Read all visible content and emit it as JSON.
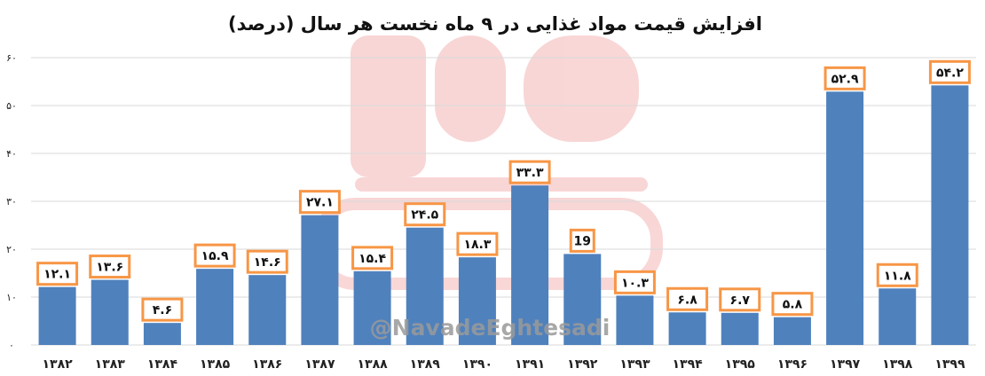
{
  "chart_data": {
    "type": "bar",
    "title": "افزایش قیمت مواد غذایی در ۹ ماه نخست هر سال (درصد)",
    "categories": [
      "۱۳۸۲",
      "۱۳۸۳",
      "۱۳۸۴",
      "۱۳۸۵",
      "۱۳۸۶",
      "۱۳۸۷",
      "۱۳۸۸",
      "۱۳۸۹",
      "۱۳۹۰",
      "۱۳۹۱",
      "۱۳۹۲",
      "۱۳۹۳",
      "۱۳۹۴",
      "۱۳۹۵",
      "۱۳۹۶",
      "۱۳۹۷",
      "۱۳۹۸",
      "۱۳۹۹"
    ],
    "values": [
      12.1,
      13.6,
      4.6,
      15.9,
      14.6,
      27.1,
      15.4,
      24.5,
      18.3,
      33.3,
      19,
      10.3,
      6.8,
      6.7,
      5.8,
      52.9,
      11.8,
      54.2
    ],
    "data_labels": [
      "۱۲.۱",
      "۱۳.۶",
      "۴.۶",
      "۱۵.۹",
      "۱۴.۶",
      "۲۷.۱",
      "۱۵.۴",
      "۲۴.۵",
      "۱۸.۳",
      "۳۳.۳",
      "19",
      "۱۰.۳",
      "۶.۸",
      "۶.۷",
      "۵.۸",
      "۵۲.۹",
      "۱۱.۸",
      "۵۴.۲"
    ],
    "ylim": [
      0,
      60
    ],
    "y_ticks": [
      0,
      10,
      20,
      30,
      40,
      50,
      60
    ],
    "y_tick_labels": [
      "۰",
      "۱۰",
      "۲۰",
      "۳۰",
      "۴۰",
      "۵۰",
      "۶۰"
    ],
    "grid": true,
    "xlabel": "",
    "ylabel": "",
    "colors": {
      "bar": "#4f81bd",
      "label_border": "#f79646",
      "grid": "#d9d9d9",
      "watermark": "#f4b6b6"
    }
  },
  "watermark": {
    "text": "@NavadeEghtesadi"
  }
}
